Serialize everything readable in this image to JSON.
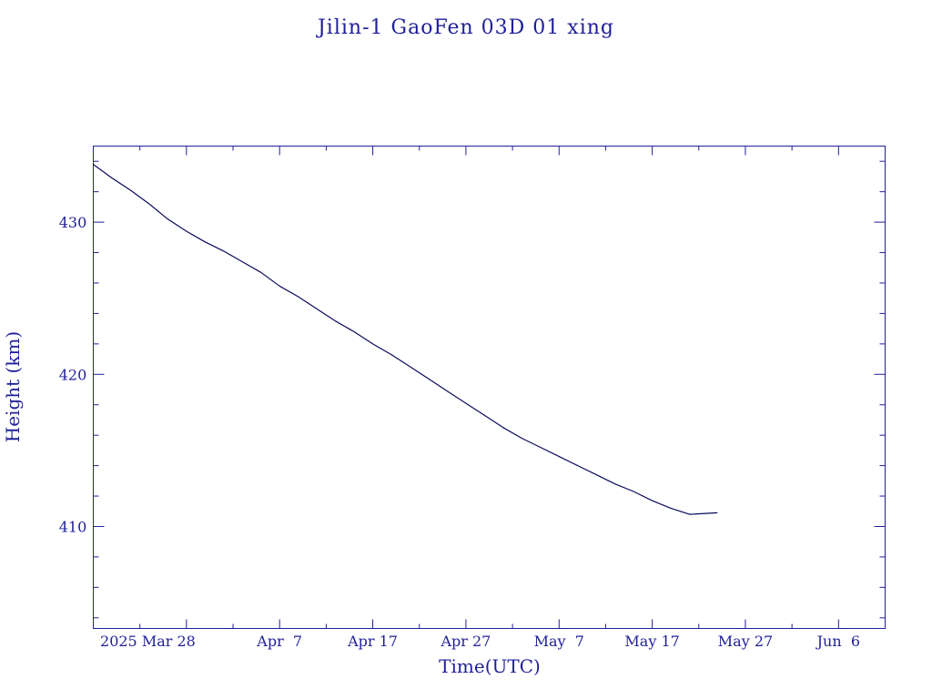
{
  "chart_data": {
    "type": "line",
    "title": "Jilin-1 GaoFen 03D 01 xing",
    "xlabel": "Time(UTC)",
    "ylabel": "Height (km)",
    "x_is_date": true,
    "xlim": [
      "2025-03-18",
      "2025-06-11"
    ],
    "ylim": [
      403.3,
      435.0
    ],
    "y_ticks": [
      410,
      420,
      430
    ],
    "y_tick_labels": [
      "410",
      "420",
      "430"
    ],
    "x_ticks": [
      "2025-03-28",
      "2025-04-07",
      "2025-04-17",
      "2025-04-27",
      "2025-05-07",
      "2025-05-17",
      "2025-05-27",
      "2025-06-06"
    ],
    "x_tick_labels": [
      "2025 Mar 28",
      "Apr  7",
      "Apr 17",
      "Apr 27",
      "May  7",
      "May 17",
      "May 27",
      "Jun  6"
    ],
    "grid": false,
    "legend": "none",
    "colors": {
      "ink": "#1f1f9a",
      "line": "#0a0a5c",
      "background": "#ffffff"
    },
    "series": [
      {
        "x": [
          "2025-03-18",
          "2025-03-20",
          "2025-03-22",
          "2025-03-24",
          "2025-03-26",
          "2025-03-28",
          "2025-03-30",
          "2025-04-01",
          "2025-04-03",
          "2025-04-05",
          "2025-04-07",
          "2025-04-09",
          "2025-04-11",
          "2025-04-13",
          "2025-04-15",
          "2025-04-17",
          "2025-04-19",
          "2025-04-21",
          "2025-04-23",
          "2025-04-25",
          "2025-04-27",
          "2025-04-29",
          "2025-05-01",
          "2025-05-03",
          "2025-05-05",
          "2025-05-07",
          "2025-05-09",
          "2025-05-11",
          "2025-05-13",
          "2025-05-15",
          "2025-05-17",
          "2025-05-19",
          "2025-05-21",
          "2025-05-24"
        ],
        "y": [
          433.8,
          432.9,
          432.1,
          431.2,
          430.2,
          429.4,
          428.7,
          428.1,
          427.4,
          426.7,
          425.8,
          425.1,
          424.3,
          423.5,
          422.8,
          422.0,
          421.3,
          420.5,
          419.7,
          418.9,
          418.1,
          417.3,
          416.5,
          415.8,
          415.2,
          414.6,
          414.0,
          413.4,
          412.8,
          412.3,
          411.7,
          411.2,
          410.8,
          410.9
        ]
      }
    ]
  }
}
